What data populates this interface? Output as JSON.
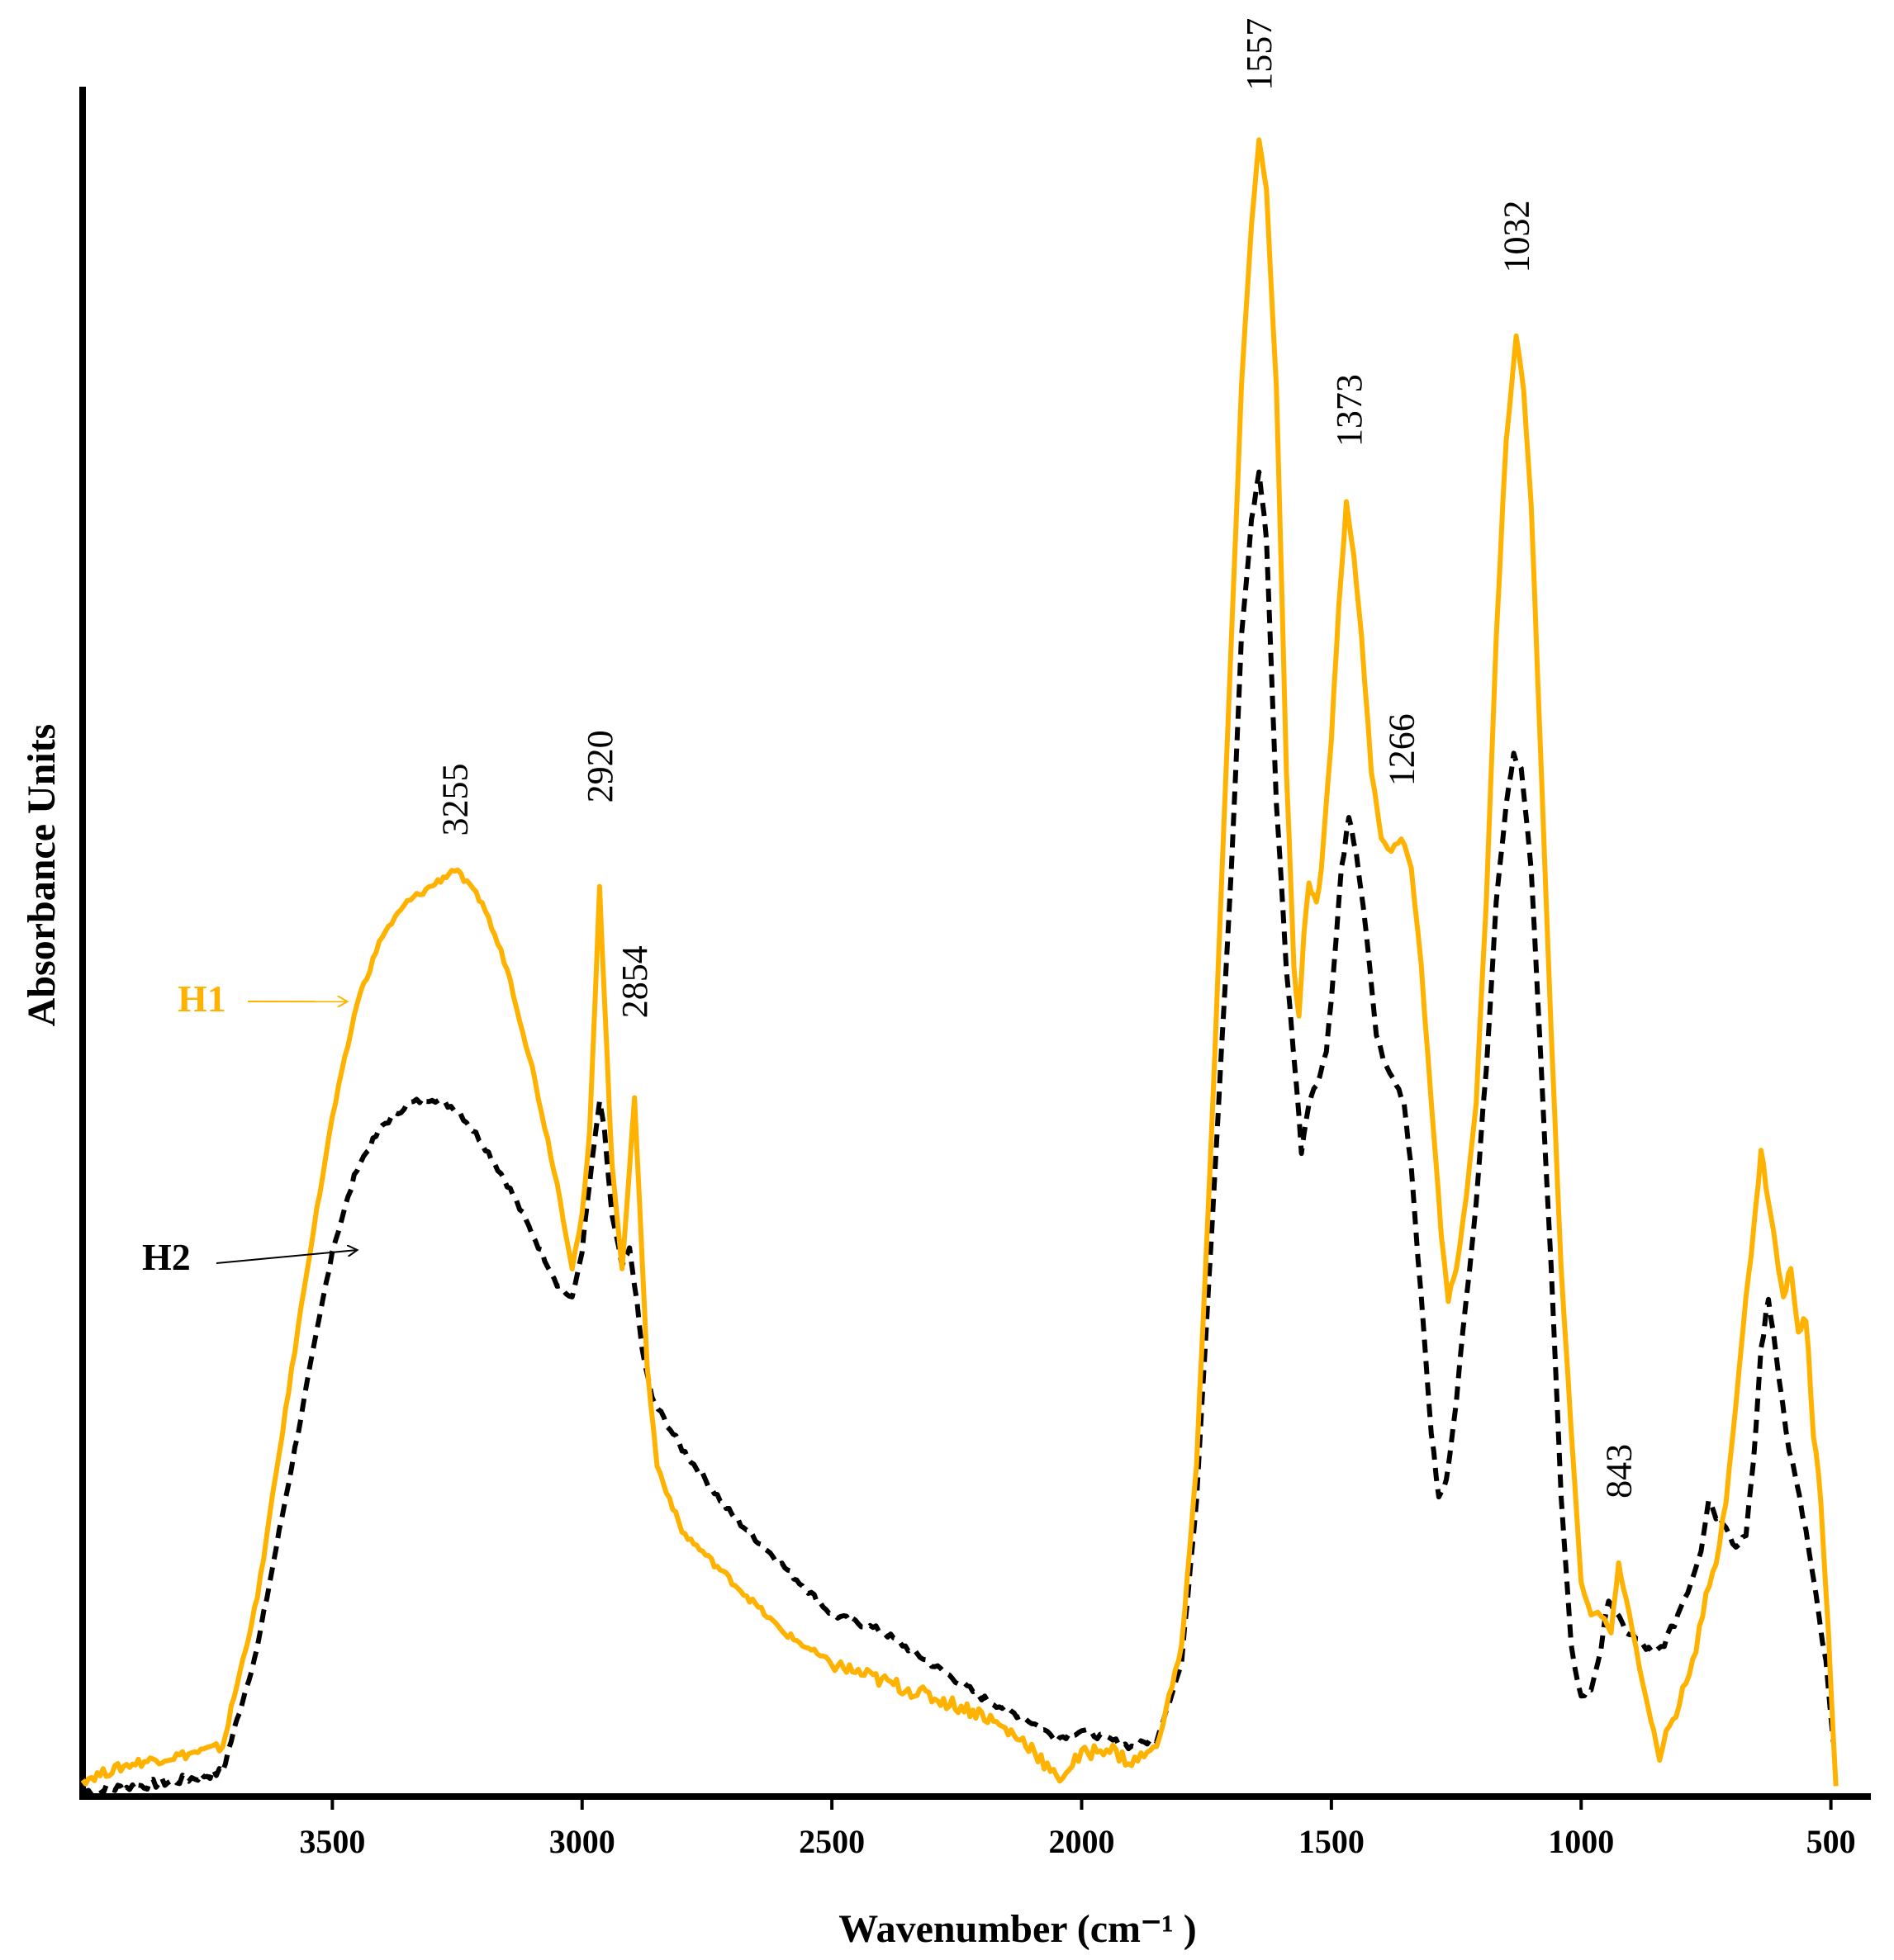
{
  "chart_data": {
    "type": "line",
    "title": "",
    "xlabel": "Wavenumber (cm⁻¹ )",
    "ylabel": "Absorbance  Units",
    "xlim": [
      4000,
      420
    ],
    "ylim": [
      0,
      1.0
    ],
    "x_reversed": true,
    "grid": false,
    "xticks": [
      3500,
      3000,
      2500,
      2000,
      1500,
      1000,
      500
    ],
    "xtick_labels": [
      "3500",
      "3000",
      "2500",
      "2000",
      "1500",
      "1000",
      "500"
    ],
    "series": [
      {
        "name": "H1",
        "color": "#FFB300",
        "style": "solid",
        "points": [
          [
            4000,
            0.01
          ],
          [
            3900,
            0.02
          ],
          [
            3800,
            0.025
          ],
          [
            3720,
            0.03
          ],
          [
            3650,
            0.12
          ],
          [
            3600,
            0.22
          ],
          [
            3550,
            0.32
          ],
          [
            3500,
            0.41
          ],
          [
            3450,
            0.48
          ],
          [
            3400,
            0.52
          ],
          [
            3350,
            0.54
          ],
          [
            3300,
            0.55
          ],
          [
            3255,
            0.56
          ],
          [
            3200,
            0.54
          ],
          [
            3150,
            0.5
          ],
          [
            3100,
            0.44
          ],
          [
            3050,
            0.37
          ],
          [
            3020,
            0.32
          ],
          [
            3000,
            0.35
          ],
          [
            2985,
            0.4
          ],
          [
            2965,
            0.55
          ],
          [
            2955,
            0.48
          ],
          [
            2940,
            0.38
          ],
          [
            2920,
            0.32
          ],
          [
            2905,
            0.38
          ],
          [
            2895,
            0.42
          ],
          [
            2885,
            0.36
          ],
          [
            2870,
            0.26
          ],
          [
            2850,
            0.2
          ],
          [
            2800,
            0.16
          ],
          [
            2700,
            0.13
          ],
          [
            2600,
            0.1
          ],
          [
            2500,
            0.08
          ],
          [
            2400,
            0.07
          ],
          [
            2300,
            0.06
          ],
          [
            2200,
            0.05
          ],
          [
            2100,
            0.03
          ],
          [
            2050,
            0.01
          ],
          [
            2000,
            0.025
          ],
          [
            1950,
            0.03
          ],
          [
            1900,
            0.02
          ],
          [
            1850,
            0.03
          ],
          [
            1800,
            0.09
          ],
          [
            1770,
            0.2
          ],
          [
            1740,
            0.4
          ],
          [
            1720,
            0.55
          ],
          [
            1700,
            0.7
          ],
          [
            1680,
            0.85
          ],
          [
            1660,
            0.95
          ],
          [
            1645,
            1.0
          ],
          [
            1630,
            0.97
          ],
          [
            1610,
            0.85
          ],
          [
            1590,
            0.62
          ],
          [
            1575,
            0.5
          ],
          [
            1565,
            0.47
          ],
          [
            1555,
            0.52
          ],
          [
            1545,
            0.55
          ],
          [
            1530,
            0.54
          ],
          [
            1520,
            0.56
          ],
          [
            1500,
            0.64
          ],
          [
            1485,
            0.72
          ],
          [
            1470,
            0.78
          ],
          [
            1455,
            0.75
          ],
          [
            1440,
            0.7
          ],
          [
            1420,
            0.62
          ],
          [
            1400,
            0.58
          ],
          [
            1380,
            0.57
          ],
          [
            1360,
            0.58
          ],
          [
            1340,
            0.56
          ],
          [
            1320,
            0.5
          ],
          [
            1300,
            0.42
          ],
          [
            1280,
            0.34
          ],
          [
            1266,
            0.3
          ],
          [
            1250,
            0.32
          ],
          [
            1230,
            0.36
          ],
          [
            1210,
            0.42
          ],
          [
            1190,
            0.54
          ],
          [
            1170,
            0.7
          ],
          [
            1150,
            0.82
          ],
          [
            1130,
            0.88
          ],
          [
            1115,
            0.85
          ],
          [
            1100,
            0.78
          ],
          [
            1080,
            0.62
          ],
          [
            1060,
            0.46
          ],
          [
            1040,
            0.32
          ],
          [
            1020,
            0.22
          ],
          [
            1000,
            0.13
          ],
          [
            980,
            0.11
          ],
          [
            960,
            0.11
          ],
          [
            940,
            0.1
          ],
          [
            925,
            0.14
          ],
          [
            910,
            0.12
          ],
          [
            890,
            0.09
          ],
          [
            870,
            0.06
          ],
          [
            855,
            0.04
          ],
          [
            843,
            0.02
          ],
          [
            830,
            0.04
          ],
          [
            810,
            0.05
          ],
          [
            790,
            0.07
          ],
          [
            770,
            0.09
          ],
          [
            750,
            0.12
          ],
          [
            730,
            0.14
          ],
          [
            710,
            0.18
          ],
          [
            690,
            0.24
          ],
          [
            670,
            0.3
          ],
          [
            655,
            0.34
          ],
          [
            640,
            0.39
          ],
          [
            625,
            0.36
          ],
          [
            610,
            0.33
          ],
          [
            595,
            0.3
          ],
          [
            580,
            0.32
          ],
          [
            565,
            0.28
          ],
          [
            550,
            0.29
          ],
          [
            535,
            0.22
          ],
          [
            520,
            0.18
          ],
          [
            505,
            0.1
          ],
          [
            490,
            0.005
          ]
        ]
      },
      {
        "name": "H2",
        "color": "#000000",
        "style": "dashed",
        "points": [
          [
            4000,
            0.003
          ],
          [
            3900,
            0.006
          ],
          [
            3800,
            0.01
          ],
          [
            3720,
            0.015
          ],
          [
            3650,
            0.09
          ],
          [
            3600,
            0.17
          ],
          [
            3550,
            0.25
          ],
          [
            3500,
            0.33
          ],
          [
            3450,
            0.38
          ],
          [
            3400,
            0.405
          ],
          [
            3350,
            0.418
          ],
          [
            3300,
            0.422
          ],
          [
            3250,
            0.415
          ],
          [
            3200,
            0.395
          ],
          [
            3150,
            0.37
          ],
          [
            3100,
            0.34
          ],
          [
            3050,
            0.31
          ],
          [
            3020,
            0.3
          ],
          [
            3000,
            0.33
          ],
          [
            2985,
            0.37
          ],
          [
            2965,
            0.42
          ],
          [
            2955,
            0.4
          ],
          [
            2940,
            0.35
          ],
          [
            2920,
            0.32
          ],
          [
            2905,
            0.33
          ],
          [
            2895,
            0.31
          ],
          [
            2880,
            0.27
          ],
          [
            2860,
            0.24
          ],
          [
            2800,
            0.21
          ],
          [
            2700,
            0.17
          ],
          [
            2600,
            0.14
          ],
          [
            2500,
            0.11
          ],
          [
            2400,
            0.1
          ],
          [
            2300,
            0.08
          ],
          [
            2200,
            0.06
          ],
          [
            2100,
            0.045
          ],
          [
            2050,
            0.035
          ],
          [
            2000,
            0.04
          ],
          [
            1950,
            0.035
          ],
          [
            1900,
            0.03
          ],
          [
            1850,
            0.035
          ],
          [
            1800,
            0.08
          ],
          [
            1770,
            0.18
          ],
          [
            1740,
            0.34
          ],
          [
            1720,
            0.45
          ],
          [
            1700,
            0.56
          ],
          [
            1680,
            0.7
          ],
          [
            1660,
            0.77
          ],
          [
            1645,
            0.8
          ],
          [
            1630,
            0.76
          ],
          [
            1610,
            0.6
          ],
          [
            1590,
            0.5
          ],
          [
            1570,
            0.43
          ],
          [
            1560,
            0.39
          ],
          [
            1545,
            0.42
          ],
          [
            1530,
            0.43
          ],
          [
            1510,
            0.45
          ],
          [
            1495,
            0.5
          ],
          [
            1480,
            0.56
          ],
          [
            1465,
            0.59
          ],
          [
            1450,
            0.57
          ],
          [
            1430,
            0.52
          ],
          [
            1410,
            0.46
          ],
          [
            1390,
            0.44
          ],
          [
            1370,
            0.43
          ],
          [
            1355,
            0.42
          ],
          [
            1340,
            0.38
          ],
          [
            1320,
            0.3
          ],
          [
            1300,
            0.22
          ],
          [
            1285,
            0.18
          ],
          [
            1270,
            0.19
          ],
          [
            1250,
            0.24
          ],
          [
            1230,
            0.3
          ],
          [
            1210,
            0.36
          ],
          [
            1190,
            0.44
          ],
          [
            1170,
            0.54
          ],
          [
            1150,
            0.6
          ],
          [
            1135,
            0.63
          ],
          [
            1120,
            0.62
          ],
          [
            1100,
            0.56
          ],
          [
            1080,
            0.44
          ],
          [
            1060,
            0.32
          ],
          [
            1040,
            0.18
          ],
          [
            1020,
            0.09
          ],
          [
            1000,
            0.06
          ],
          [
            980,
            0.065
          ],
          [
            960,
            0.09
          ],
          [
            945,
            0.12
          ],
          [
            930,
            0.11
          ],
          [
            910,
            0.1
          ],
          [
            890,
            0.095
          ],
          [
            870,
            0.09
          ],
          [
            855,
            0.085
          ],
          [
            840,
            0.09
          ],
          [
            820,
            0.1
          ],
          [
            800,
            0.115
          ],
          [
            780,
            0.13
          ],
          [
            760,
            0.15
          ],
          [
            745,
            0.18
          ],
          [
            730,
            0.17
          ],
          [
            710,
            0.165
          ],
          [
            690,
            0.15
          ],
          [
            670,
            0.16
          ],
          [
            655,
            0.2
          ],
          [
            640,
            0.27
          ],
          [
            625,
            0.3
          ],
          [
            610,
            0.27
          ],
          [
            590,
            0.22
          ],
          [
            570,
            0.19
          ],
          [
            550,
            0.16
          ],
          [
            530,
            0.12
          ],
          [
            510,
            0.08
          ],
          [
            495,
            0.03
          ]
        ]
      }
    ],
    "annotations": [
      {
        "text": "1557",
        "x": 1645,
        "y": 1.0,
        "gap": 0.03
      },
      {
        "text": "1373",
        "x": 1465,
        "y": 0.78,
        "gap": 0.035
      },
      {
        "text": "1032",
        "x": 1130,
        "y": 0.88,
        "gap": 0.04
      },
      {
        "text": "1266",
        "x": 1360,
        "y": 0.58,
        "gap": 0.03
      },
      {
        "text": "2920",
        "x": 2965,
        "y": 0.55,
        "gap": 0.05
      },
      {
        "text": "2854",
        "x": 2895,
        "y": 0.42,
        "gap": 0.05
      },
      {
        "text": "3255",
        "x": 3255,
        "y": 0.56,
        "gap": 0.02
      },
      {
        "text": "843",
        "x": 925,
        "y": 0.14,
        "gap": 0.04
      }
    ],
    "legend": [
      {
        "name": "H1",
        "color": "#FFB300",
        "arrow_to_x": 3470,
        "arrow_to_y": 0.48
      },
      {
        "name": "H2",
        "color": "#000000",
        "arrow_to_x": 3450,
        "arrow_to_y": 0.33
      }
    ]
  }
}
